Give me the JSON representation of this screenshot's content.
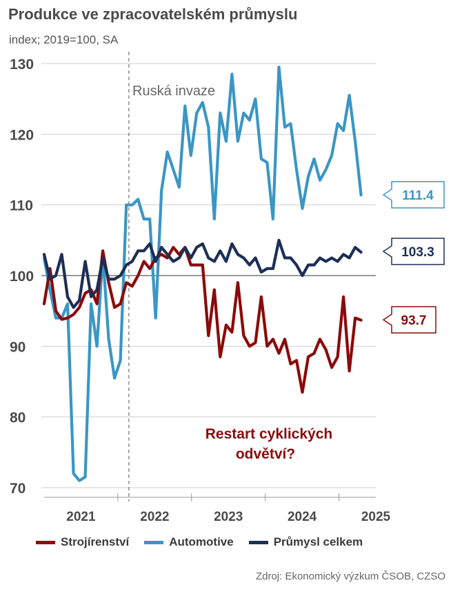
{
  "header": {
    "title": "Produkce ve zpracovatelském průmyslu",
    "subtitle": "index; 2019=100, SA"
  },
  "legend": [
    {
      "label": "Strojírenství",
      "color": "#8b0a0a"
    },
    {
      "label": "Automotive",
      "color": "#3a96c5"
    },
    {
      "label": "Průmysl celkem",
      "color": "#1c2f55"
    }
  ],
  "source": "Zdroj: Ekonomický výzkum ČSOB, CZSO",
  "chart_data": {
    "type": "line",
    "title": "Produkce ve zpracovatelském průmyslu",
    "subtitle": "index; 2019=100, SA",
    "xlabel": "",
    "ylabel": "",
    "ylim": [
      70,
      130
    ],
    "yticks": [
      70,
      80,
      90,
      100,
      110,
      120,
      130
    ],
    "xlim": [
      2021.0,
      2025.5
    ],
    "xtick_labels": [
      "2021",
      "2022",
      "2023",
      "2024",
      "2025"
    ],
    "annotation_invasion": {
      "label": "Ruská invaze",
      "x": 2022.15
    },
    "annotation_restart": {
      "line1": "Restart cyklických",
      "line2": "odvětví?"
    },
    "end_labels": {
      "Strojírenství": "93.7",
      "Automotive": "111.4",
      "Průmysl celkem": "103.3"
    },
    "series": [
      {
        "name": "Automotive",
        "color": "#3a96c5",
        "values": [
          102.5,
          98,
          94,
          94,
          96,
          72,
          71,
          71.5,
          96,
          90,
          103,
          91,
          85.5,
          88,
          110,
          110,
          110.8,
          108,
          108,
          94,
          112,
          117.5,
          115,
          112.5,
          124,
          117,
          123,
          124.5,
          121,
          108,
          123,
          119,
          128.5,
          119,
          123,
          122,
          125,
          116.5,
          116,
          108,
          129.5,
          121,
          121.5,
          115,
          109.5,
          114,
          116.5,
          113.5,
          115,
          117,
          121.5,
          120.5,
          125.5,
          119,
          111.4
        ]
      },
      {
        "name": "Strojírenství",
        "color": "#8b0a0a",
        "values": [
          96,
          101,
          95,
          93.8,
          94,
          94.5,
          95.5,
          97.5,
          98,
          96,
          103.5,
          99,
          95.5,
          96,
          99,
          98.5,
          100,
          102,
          101,
          102.5,
          103,
          102.5,
          104,
          103,
          104,
          101.5,
          101.5,
          101.5,
          91.5,
          98,
          88.5,
          93,
          92,
          99,
          91.5,
          90,
          90.5,
          97,
          90,
          91,
          89,
          91,
          87.5,
          88,
          83.5,
          88.5,
          89,
          91,
          89.5,
          87,
          88.5,
          97,
          86.5,
          94,
          93.7
        ]
      },
      {
        "name": "Průmysl celkem",
        "color": "#1c2f55",
        "values": [
          103,
          99.5,
          100,
          103,
          97,
          95.5,
          96.5,
          102,
          97,
          98,
          102.5,
          99.5,
          99.5,
          100,
          101.5,
          102,
          103.5,
          103.5,
          104.5,
          102,
          104,
          103,
          102,
          102.5,
          104,
          102.5,
          104,
          104.5,
          102.5,
          102,
          103.5,
          102,
          104.5,
          103,
          102.5,
          101.5,
          102.5,
          100.5,
          101,
          101,
          105,
          102.5,
          102.5,
          101.5,
          100,
          101.5,
          101.5,
          102.5,
          102,
          102.5,
          102,
          103,
          102.5,
          104,
          103.3
        ]
      }
    ]
  }
}
